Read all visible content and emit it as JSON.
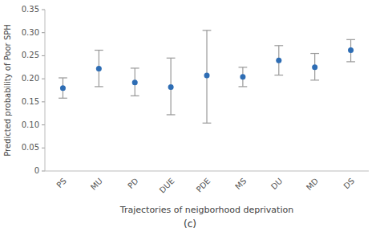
{
  "chart_data": {
    "type": "dot",
    "categories": [
      "PS",
      "MU",
      "PD",
      "DUE",
      "PDE",
      "MS",
      "DU",
      "MD",
      "DS"
    ],
    "values": [
      0.18,
      0.222,
      0.192,
      0.182,
      0.207,
      0.204,
      0.24,
      0.225,
      0.262
    ],
    "lower": [
      0.158,
      0.183,
      0.163,
      0.122,
      0.104,
      0.183,
      0.208,
      0.197,
      0.237
    ],
    "upper": [
      0.202,
      0.262,
      0.223,
      0.245,
      0.305,
      0.225,
      0.272,
      0.255,
      0.285
    ],
    "color": "#2e6db4",
    "ylabel": "Predicted probability of Poor SPH",
    "xlabel": "Trajectories of neigborhood deprivation",
    "caption": "(c)",
    "ylim": [
      0,
      0.35
    ],
    "yticks": [
      0,
      0.05,
      {
        "value": 0.1,
        "label": "0.10"
      },
      0.15,
      {
        "value": 0.2,
        "label": "0.20"
      },
      0.25,
      {
        "value": 0.3,
        "label": "0.30"
      },
      0.35
    ],
    "grid": false
  }
}
